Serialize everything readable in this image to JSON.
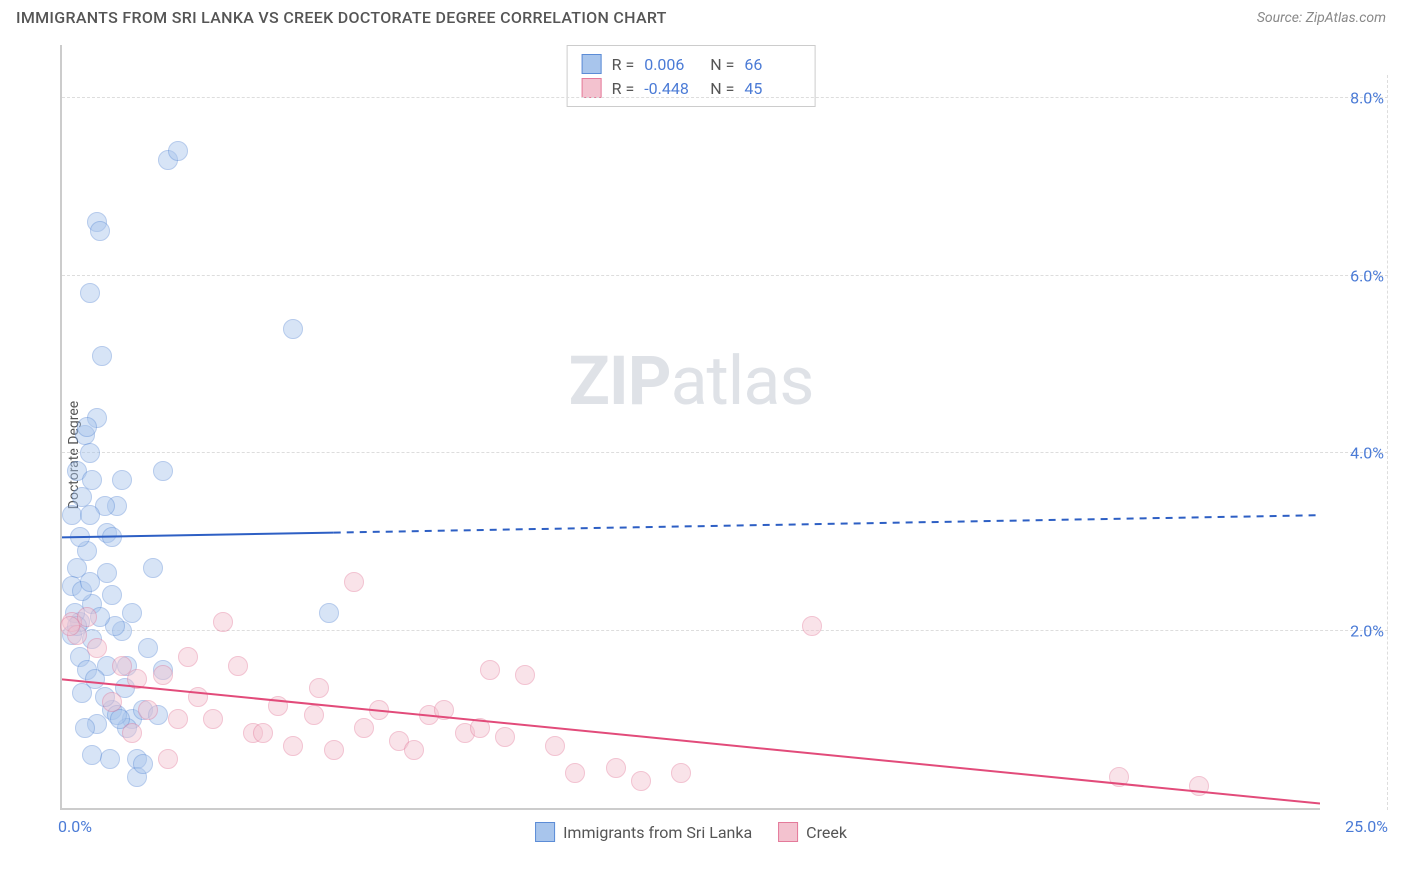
{
  "header": {
    "title": "IMMIGRANTS FROM SRI LANKA VS CREEK DOCTORATE DEGREE CORRELATION CHART",
    "source": "Source: ZipAtlas.com"
  },
  "watermark": {
    "bold": "ZIP",
    "light": "atlas"
  },
  "chart": {
    "type": "scatter",
    "y_axis_label": "Doctorate Degree",
    "background_color": "#ffffff",
    "grid_color": "#dddddd",
    "axis_color": "#cccccc",
    "tick_label_color": "#4b7bd6",
    "xlim": [
      0,
      25
    ],
    "ylim": [
      0,
      8.6
    ],
    "y_ticks": [
      2.0,
      4.0,
      6.0,
      8.0
    ],
    "y_tick_labels": [
      "2.0%",
      "4.0%",
      "6.0%",
      "8.0%"
    ],
    "x_ticks": [
      0,
      25
    ],
    "x_tick_labels": [
      "0.0%",
      "25.0%"
    ],
    "marker_radius": 10,
    "marker_opacity": 0.45,
    "series": [
      {
        "name": "Immigrants from Sri Lanka",
        "color_fill": "#a8c5ec",
        "color_stroke": "#5c8cd6",
        "stats": {
          "R": "0.006",
          "N": "66"
        },
        "trend": {
          "y_start": 3.05,
          "y_end": 3.3,
          "solid_until_x": 5.4,
          "color": "#2d5fc4",
          "width": 2
        },
        "points": [
          [
            0.2,
            3.3
          ],
          [
            0.3,
            2.7
          ],
          [
            0.35,
            2.1
          ],
          [
            0.4,
            3.5
          ],
          [
            0.45,
            4.2
          ],
          [
            0.5,
            2.9
          ],
          [
            0.6,
            2.3
          ],
          [
            0.55,
            5.8
          ],
          [
            0.7,
            6.6
          ],
          [
            0.75,
            6.5
          ],
          [
            0.8,
            5.1
          ],
          [
            0.9,
            3.1
          ],
          [
            1.0,
            2.4
          ],
          [
            1.1,
            3.4
          ],
          [
            0.7,
            4.4
          ],
          [
            0.3,
            3.8
          ],
          [
            0.6,
            1.9
          ],
          [
            1.2,
            2.0
          ],
          [
            1.3,
            1.6
          ],
          [
            1.4,
            1.0
          ],
          [
            1.5,
            0.55
          ],
          [
            1.5,
            0.35
          ],
          [
            1.6,
            1.1
          ],
          [
            1.7,
            1.8
          ],
          [
            1.8,
            2.7
          ],
          [
            2.0,
            3.8
          ],
          [
            2.1,
            7.3
          ],
          [
            2.3,
            7.4
          ],
          [
            1.4,
            2.2
          ],
          [
            1.0,
            1.1
          ],
          [
            0.9,
            1.6
          ],
          [
            0.85,
            3.4
          ],
          [
            1.2,
            3.7
          ],
          [
            0.5,
            4.3
          ],
          [
            1.3,
            0.9
          ],
          [
            1.6,
            0.5
          ],
          [
            1.9,
            1.05
          ],
          [
            2.0,
            1.55
          ],
          [
            1.1,
            1.05
          ],
          [
            4.6,
            5.4
          ],
          [
            5.3,
            2.2
          ],
          [
            0.25,
            2.2
          ],
          [
            0.2,
            1.95
          ],
          [
            0.3,
            2.05
          ],
          [
            0.2,
            2.5
          ],
          [
            0.4,
            2.45
          ],
          [
            0.35,
            1.7
          ],
          [
            0.55,
            2.55
          ],
          [
            0.6,
            3.7
          ],
          [
            0.9,
            2.65
          ],
          [
            1.05,
            2.05
          ],
          [
            0.85,
            1.25
          ],
          [
            0.7,
            0.95
          ],
          [
            1.25,
            1.35
          ],
          [
            1.0,
            3.05
          ],
          [
            1.15,
            1.0
          ],
          [
            0.95,
            0.55
          ],
          [
            0.55,
            3.3
          ],
          [
            0.75,
            2.15
          ],
          [
            0.35,
            3.05
          ],
          [
            0.55,
            4.0
          ],
          [
            0.5,
            1.55
          ],
          [
            0.4,
            1.3
          ],
          [
            0.65,
            1.45
          ],
          [
            0.45,
            0.9
          ],
          [
            0.6,
            0.6
          ]
        ]
      },
      {
        "name": "Creek",
        "color_fill": "#f3c2cf",
        "color_stroke": "#e47a9a",
        "stats": {
          "R": "-0.448",
          "N": "45"
        },
        "trend": {
          "y_start": 1.45,
          "y_end": 0.05,
          "solid_until_x": 25.0,
          "color": "#e24b7a",
          "width": 2
        },
        "points": [
          [
            0.2,
            2.1
          ],
          [
            0.3,
            1.95
          ],
          [
            0.5,
            2.15
          ],
          [
            0.7,
            1.8
          ],
          [
            1.2,
            1.6
          ],
          [
            1.5,
            1.45
          ],
          [
            1.7,
            1.1
          ],
          [
            2.0,
            1.5
          ],
          [
            2.3,
            1.0
          ],
          [
            2.5,
            1.7
          ],
          [
            3.0,
            1.0
          ],
          [
            3.2,
            2.1
          ],
          [
            3.5,
            1.6
          ],
          [
            3.8,
            0.85
          ],
          [
            4.0,
            0.85
          ],
          [
            4.3,
            1.15
          ],
          [
            4.6,
            0.7
          ],
          [
            5.0,
            1.05
          ],
          [
            5.4,
            0.65
          ],
          [
            5.8,
            2.55
          ],
          [
            6.0,
            0.9
          ],
          [
            6.3,
            1.1
          ],
          [
            6.7,
            0.75
          ],
          [
            7.0,
            0.65
          ],
          [
            7.3,
            1.05
          ],
          [
            7.6,
            1.1
          ],
          [
            8.0,
            0.85
          ],
          [
            8.3,
            0.9
          ],
          [
            8.5,
            1.55
          ],
          [
            8.8,
            0.8
          ],
          [
            9.2,
            1.5
          ],
          [
            9.8,
            0.7
          ],
          [
            10.2,
            0.4
          ],
          [
            11.0,
            0.45
          ],
          [
            11.5,
            0.3
          ],
          [
            12.3,
            0.4
          ],
          [
            14.9,
            2.05
          ],
          [
            1.0,
            1.2
          ],
          [
            1.4,
            0.85
          ],
          [
            2.1,
            0.55
          ],
          [
            2.7,
            1.25
          ],
          [
            5.1,
            1.35
          ],
          [
            21.0,
            0.35
          ],
          [
            22.6,
            0.25
          ],
          [
            0.15,
            2.05
          ]
        ]
      }
    ],
    "stats_panel": {
      "border_color": "#cccccc",
      "label_color": "#555555",
      "value_color": "#4b7bd6",
      "R_label": "R =",
      "N_label": "N ="
    }
  }
}
